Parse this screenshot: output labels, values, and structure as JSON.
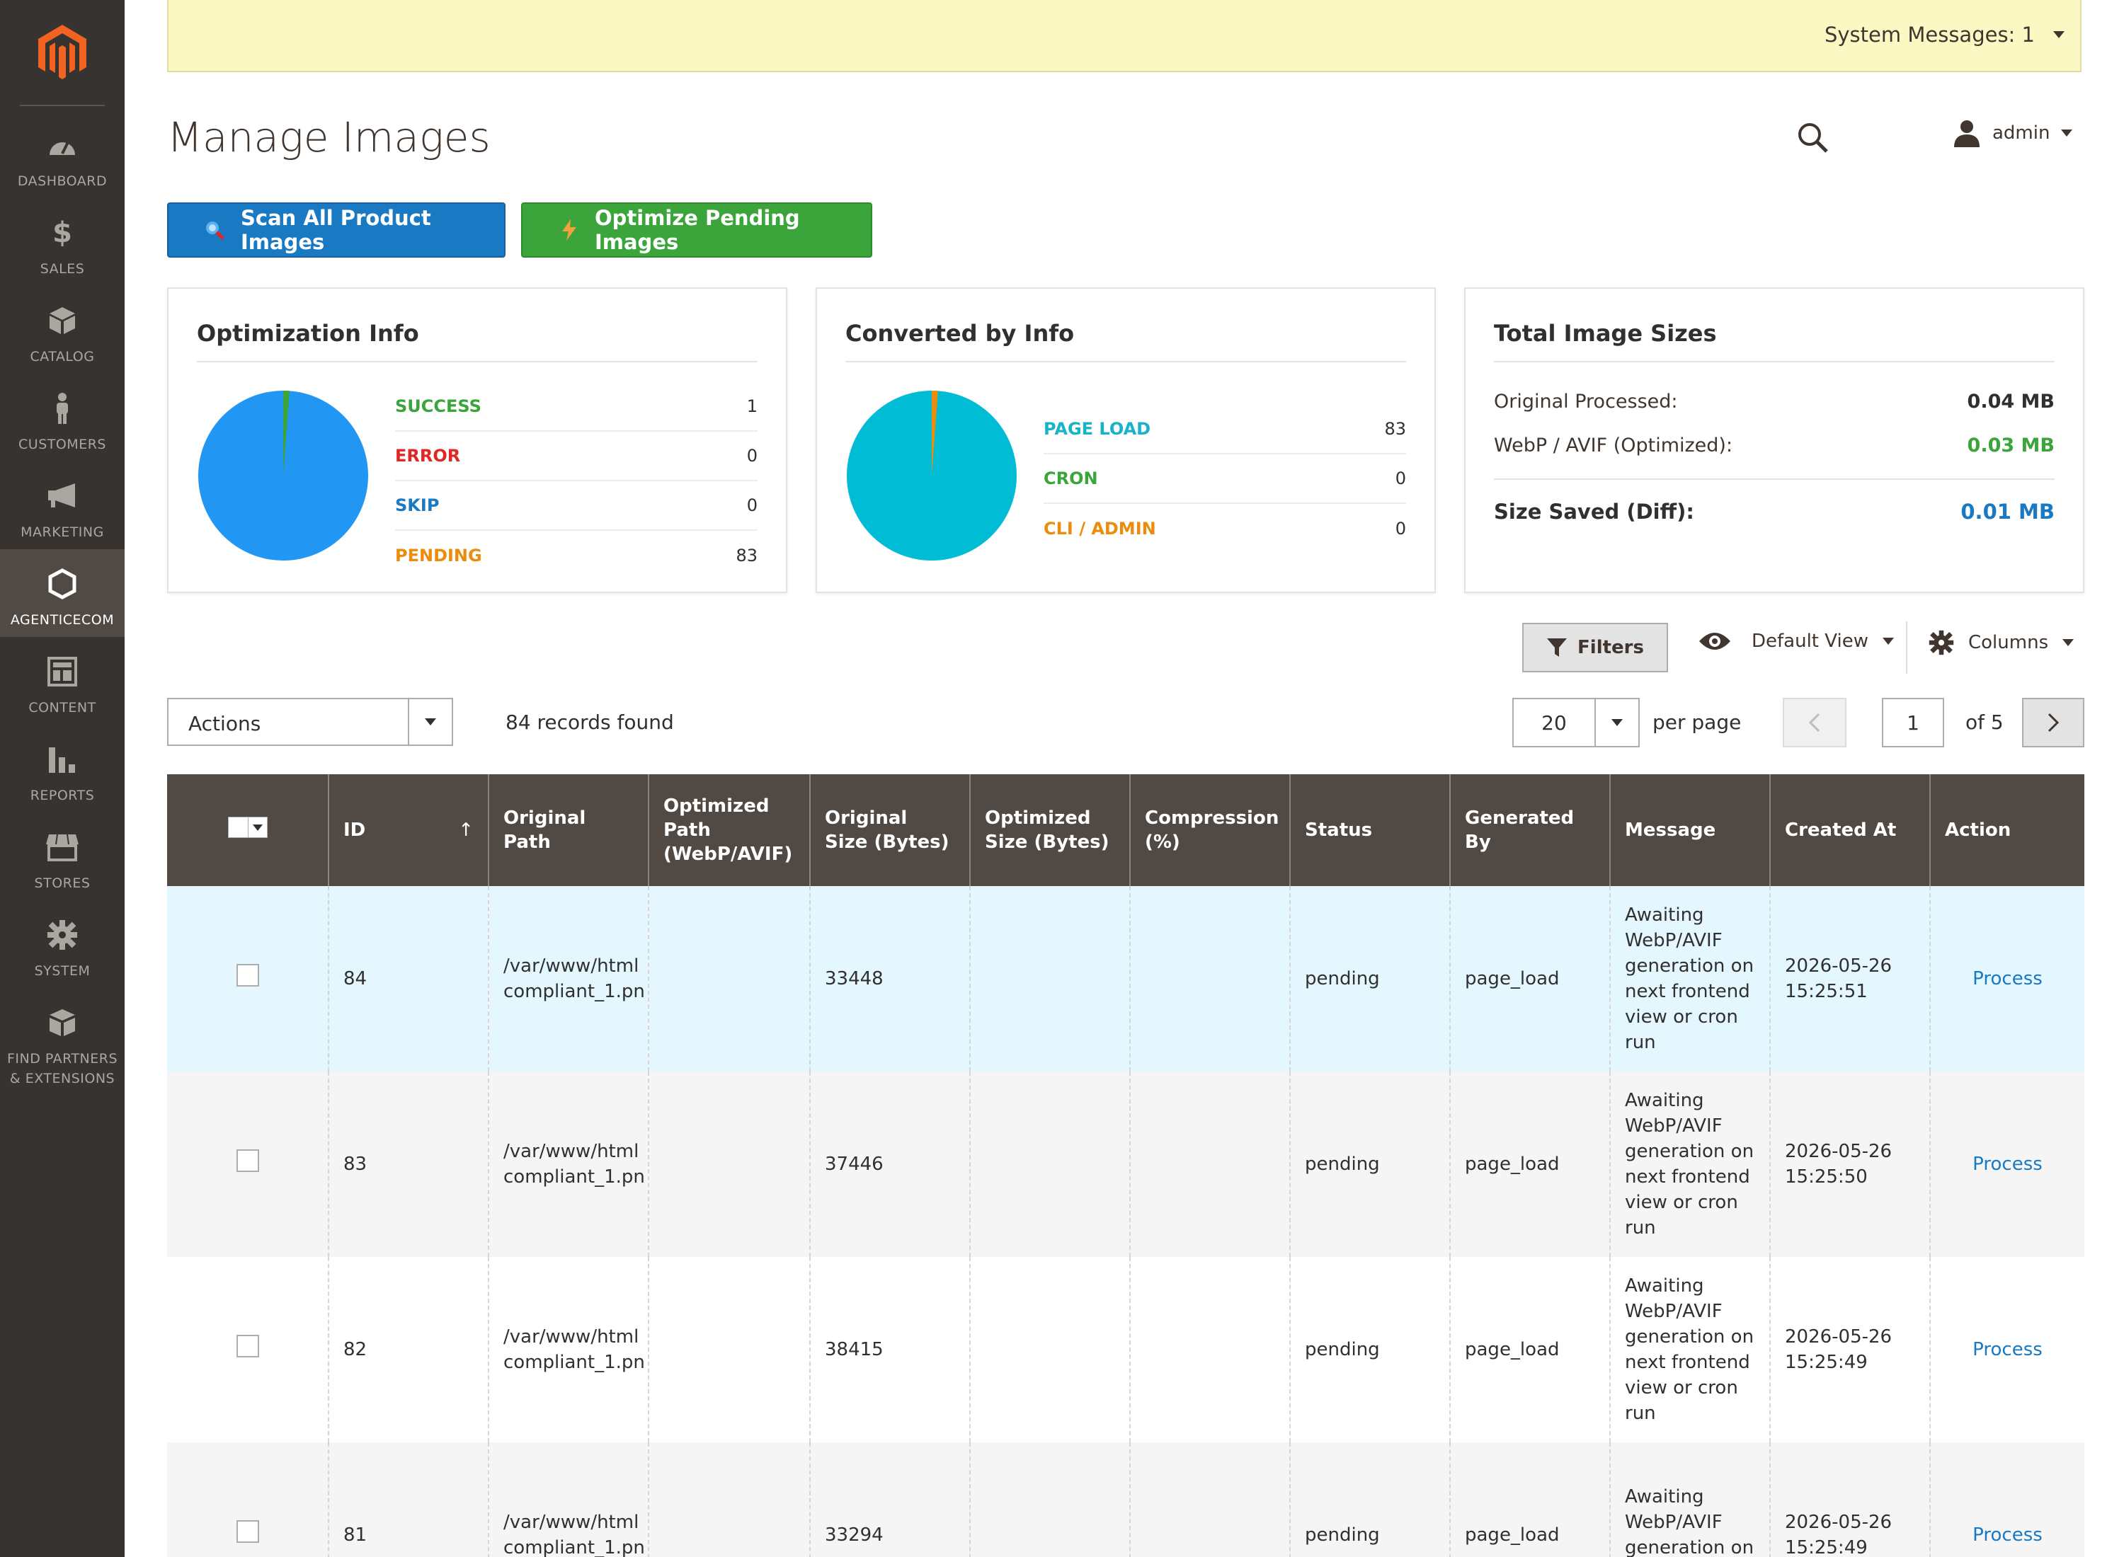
{
  "sidebar": {
    "items": [
      {
        "label": "DASHBOARD",
        "icon": "dashboard-icon"
      },
      {
        "label": "SALES",
        "icon": "dollar-icon"
      },
      {
        "label": "CATALOG",
        "icon": "cube-icon"
      },
      {
        "label": "CUSTOMERS",
        "icon": "person-icon"
      },
      {
        "label": "MARKETING",
        "icon": "megaphone-icon"
      },
      {
        "label": "AGENTICECOM",
        "icon": "hexagon-icon"
      },
      {
        "label": "CONTENT",
        "icon": "layout-icon"
      },
      {
        "label": "REPORTS",
        "icon": "bar-chart-icon"
      },
      {
        "label": "STORES",
        "icon": "store-icon"
      },
      {
        "label": "SYSTEM",
        "icon": "gear-icon"
      },
      {
        "label": "FIND PARTNERS & EXTENSIONS",
        "icon": "boxes-icon"
      }
    ]
  },
  "system_messages": "System Messages: 1",
  "header": {
    "title": "Manage Images",
    "user": "admin"
  },
  "buttons": {
    "scan": "Scan All Product Images",
    "optimize": "Optimize Pending Images"
  },
  "optimization_info": {
    "title": "Optimization Info",
    "rows": [
      {
        "label": "SUCCESS",
        "value": "1",
        "color": "#3ba53b"
      },
      {
        "label": "ERROR",
        "value": "0",
        "color": "#e22626"
      },
      {
        "label": "SKIP",
        "value": "0",
        "color": "#1979c3"
      },
      {
        "label": "PENDING",
        "value": "83",
        "color": "#eb8c0c"
      }
    ]
  },
  "converted_info": {
    "title": "Converted by Info",
    "rows": [
      {
        "label": "PAGE LOAD",
        "value": "83",
        "color": "#17b3c9"
      },
      {
        "label": "CRON",
        "value": "0",
        "color": "#3ba53b"
      },
      {
        "label": "CLI / ADMIN",
        "value": "0",
        "color": "#eb8c0c"
      }
    ]
  },
  "total_sizes": {
    "title": "Total Image Sizes",
    "original_label": "Original Processed:",
    "original_value": "0.04 MB",
    "optimized_label": "WebP / AVIF (Optimized):",
    "optimized_value": "0.03 MB",
    "saved_label": "Size Saved (Diff):",
    "saved_value": "0.01 MB"
  },
  "toolbar": {
    "filters": "Filters",
    "view": "Default View",
    "columns": "Columns",
    "actions": "Actions",
    "records": "84 records found",
    "per_page_value": "20",
    "per_page_label": "per page",
    "page": "1",
    "of_pages": "of 5"
  },
  "table": {
    "headers": [
      "ID",
      "Original Path",
      "Optimized Path (WebP/AVIF)",
      "Original Size (Bytes)",
      "Optimized Size (Bytes)",
      "Compression (%)",
      "Status",
      "Generated By",
      "Message",
      "Created At",
      "Action"
    ],
    "sort_indicator": "↑",
    "rows": [
      {
        "id": "84",
        "path1": "/var/www/html",
        "path2": "compliant_1.pn",
        "optimized_path": "",
        "original_size": "33448",
        "optimized_size": "",
        "compression": "",
        "status": "pending",
        "generated_by": "page_load",
        "message": "Awaiting WebP/AVIF generation on next frontend view or cron run",
        "created_date": "2026-05-26",
        "created_time": "15:25:51",
        "action": "Process"
      },
      {
        "id": "83",
        "path1": "/var/www/html",
        "path2": "compliant_1.pn",
        "optimized_path": "",
        "original_size": "37446",
        "optimized_size": "",
        "compression": "",
        "status": "pending",
        "generated_by": "page_load",
        "message": "Awaiting WebP/AVIF generation on next frontend view or cron run",
        "created_date": "2026-05-26",
        "created_time": "15:25:50",
        "action": "Process"
      },
      {
        "id": "82",
        "path1": "/var/www/html",
        "path2": "compliant_1.pn",
        "optimized_path": "",
        "original_size": "38415",
        "optimized_size": "",
        "compression": "",
        "status": "pending",
        "generated_by": "page_load",
        "message": "Awaiting WebP/AVIF generation on next frontend view or cron run",
        "created_date": "2026-05-26",
        "created_time": "15:25:49",
        "action": "Process"
      },
      {
        "id": "81",
        "path1": "/var/www/html",
        "path2": "compliant_1.pn",
        "optimized_path": "",
        "original_size": "33294",
        "optimized_size": "",
        "compression": "",
        "status": "pending",
        "generated_by": "page_load",
        "message": "Awaiting WebP/AVIF generation on next frontend",
        "created_date": "2026-05-26",
        "created_time": "15:25:49",
        "action": "Process"
      }
    ]
  },
  "colors": {
    "sidebar": "#373330",
    "header_bg": "#514943",
    "accent_blue": "#1979c3",
    "accent_green": "#3ba53b",
    "pie_blue": "#2196f3",
    "pie_cyan": "#00bcd4",
    "logo_orange": "#f26322"
  }
}
